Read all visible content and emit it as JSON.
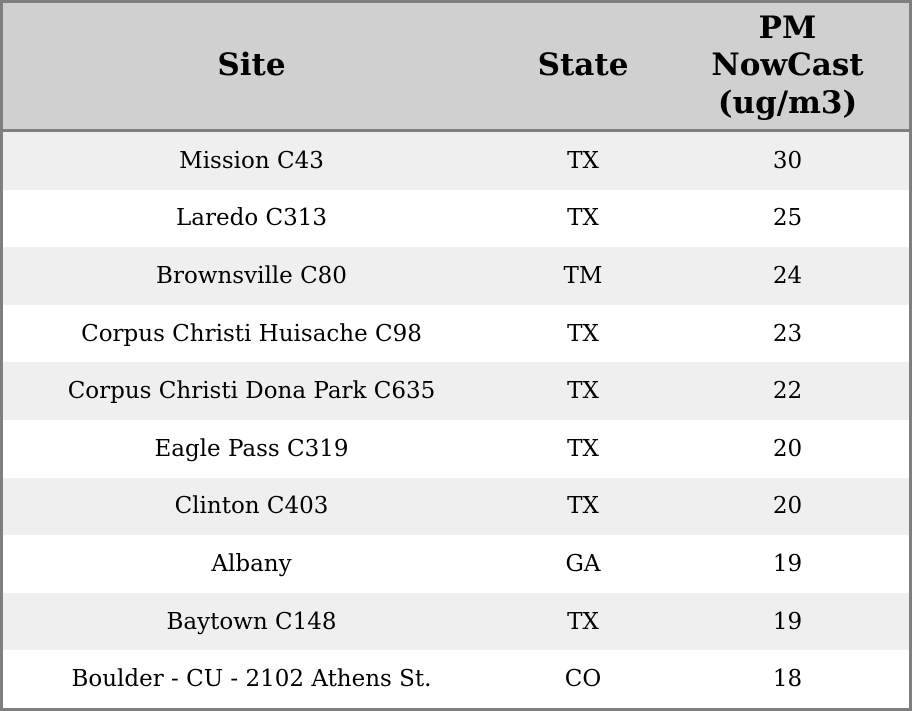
{
  "colors": {
    "border": "#7f7f7f",
    "header_bg": "#d0d0d0",
    "row_alt_bg": "#efefef",
    "row_bg": "#ffffff",
    "text": "#000000"
  },
  "table": {
    "headers": {
      "site": "Site",
      "state": "State",
      "pm_nowcast": "PM\nNowCast\n(ug/m3)"
    },
    "rows": [
      {
        "site": "Mission C43",
        "state": "TX",
        "pm_nowcast": "30"
      },
      {
        "site": "Laredo C313",
        "state": "TX",
        "pm_nowcast": "25"
      },
      {
        "site": "Brownsville C80",
        "state": "TM",
        "pm_nowcast": "24"
      },
      {
        "site": "Corpus Christi Huisache C98",
        "state": "TX",
        "pm_nowcast": "23"
      },
      {
        "site": "Corpus Christi Dona Park C635",
        "state": "TX",
        "pm_nowcast": "22"
      },
      {
        "site": "Eagle Pass C319",
        "state": "TX",
        "pm_nowcast": "20"
      },
      {
        "site": "Clinton C403",
        "state": "TX",
        "pm_nowcast": "20"
      },
      {
        "site": "Albany",
        "state": "GA",
        "pm_nowcast": "19"
      },
      {
        "site": "Baytown C148",
        "state": "TX",
        "pm_nowcast": "19"
      },
      {
        "site": "Boulder - CU - 2102 Athens St.",
        "state": "CO",
        "pm_nowcast": "18"
      }
    ]
  },
  "chart_data": {
    "type": "table",
    "title": "",
    "columns": [
      "Site",
      "State",
      "PM NowCast (ug/m3)"
    ],
    "rows": [
      [
        "Mission C43",
        "TX",
        30
      ],
      [
        "Laredo C313",
        "TX",
        25
      ],
      [
        "Brownsville C80",
        "TM",
        24
      ],
      [
        "Corpus Christi Huisache C98",
        "TX",
        23
      ],
      [
        "Corpus Christi Dona Park C635",
        "TX",
        22
      ],
      [
        "Eagle Pass C319",
        "TX",
        20
      ],
      [
        "Clinton C403",
        "TX",
        20
      ],
      [
        "Albany",
        "GA",
        19
      ],
      [
        "Baytown C148",
        "TX",
        19
      ],
      [
        "Boulder - CU - 2102 Athens St.",
        "CO",
        18
      ]
    ],
    "layout": {
      "header_position": "top",
      "row_striping": true,
      "grid": false
    }
  }
}
